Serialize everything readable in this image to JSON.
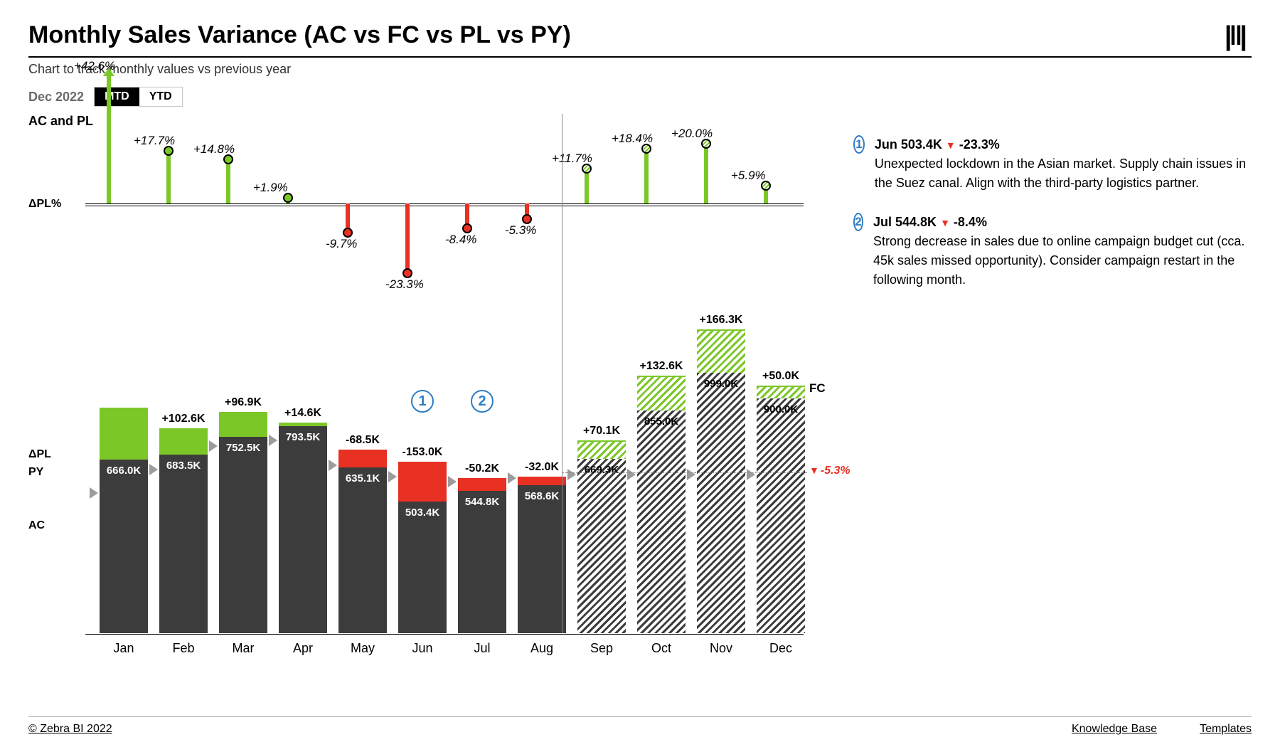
{
  "title": "Monthly Sales Variance (AC vs FC vs PL vs PY)",
  "subtitle": "Chart to track monthly values vs previous year",
  "logo_text": "⫼⫼",
  "date_label": "Dec 2022",
  "toggle": {
    "mtd": "MTD",
    "ytd": "YTD",
    "active": "MTD"
  },
  "colors": {
    "pos": "#7cc728",
    "neg": "#e83023",
    "bar": "#3c3c3c",
    "marker": "#9c9c9c",
    "accent": "#2f7cc3"
  },
  "axis_labels": {
    "ac_pl": "AC and PL",
    "delta_pl_pct": "ΔPL%",
    "delta_pl": "ΔPL",
    "py": "PY",
    "ac": "AC",
    "fc": "FC"
  },
  "months": [
    "Jan",
    "Feb",
    "Mar",
    "Apr",
    "May",
    "Jun",
    "Jul",
    "Aug",
    "Sep",
    "Oct",
    "Nov",
    "Dec"
  ],
  "variance_pct": {
    "values": [
      42.6,
      17.7,
      14.8,
      1.9,
      -9.7,
      -23.3,
      -8.4,
      -5.3,
      11.7,
      18.4,
      20.0,
      5.9
    ],
    "labels": [
      "+42.6%",
      "+17.7%",
      "+14.8%",
      "+1.9%",
      "-9.7%",
      "-23.3%",
      "-8.4%",
      "-5.3%",
      "+11.7%",
      "+18.4%",
      "+20.0%",
      "+5.9%"
    ],
    "hatched": [
      false,
      false,
      false,
      false,
      false,
      false,
      false,
      false,
      true,
      true,
      true,
      true
    ],
    "arrow_top": [
      true,
      false,
      false,
      false,
      false,
      false,
      false,
      false,
      false,
      false,
      false,
      false
    ]
  },
  "bars": {
    "base_values": [
      666.0,
      683.5,
      752.5,
      793.5,
      635.1,
      503.4,
      544.8,
      568.6,
      669.3,
      855.0,
      999.0,
      900.0
    ],
    "base_labels": [
      "666.0K",
      "683.5K",
      "752.5K",
      "793.5K",
      "635.1K",
      "503.4K",
      "544.8K",
      "568.6K",
      "669.3K",
      "855.0K",
      "999.0K",
      "900.0K"
    ],
    "delta_values": [
      199.0,
      102.6,
      96.9,
      14.6,
      -68.5,
      -153.0,
      -50.2,
      -32.0,
      70.1,
      132.6,
      166.3,
      50.0
    ],
    "delta_labels": [
      "",
      "+102.6K",
      "+96.9K",
      "+14.6K",
      "-68.5K",
      "-153.0K",
      "-50.2K",
      "-32.0K",
      "+70.1K",
      "+132.6K",
      "+166.3K",
      "+50.0K"
    ],
    "py_y": [
      189,
      222,
      255,
      263,
      228,
      212,
      205,
      210,
      215,
      215,
      215,
      215
    ],
    "forecast": [
      false,
      false,
      false,
      false,
      false,
      false,
      false,
      false,
      true,
      true,
      true,
      true
    ],
    "scale_max": 1200,
    "annotations": [
      {
        "idx": 5,
        "num": "1"
      },
      {
        "idx": 6,
        "num": "2"
      }
    ]
  },
  "overall_pct_badge": {
    "label": "-5.3%",
    "arrow": "▼"
  },
  "comments": [
    {
      "num": "1",
      "head": "Jun 503.4K",
      "arrow": "▼",
      "pct": "-23.3%",
      "body": "Unexpected lockdown in the Asian market. Supply chain issues in the Suez canal. Align with the third-party logistics partner."
    },
    {
      "num": "2",
      "head": "Jul 544.8K",
      "arrow": "▼",
      "pct": "-8.4%",
      "body": "Strong decrease in sales due to online campaign budget cut (cca. 45k sales missed opportunity). Consider campaign restart in the following month."
    }
  ],
  "footer": {
    "copyright": "© Zebra BI 2022",
    "links": [
      "Knowledge Base",
      "Templates"
    ]
  }
}
